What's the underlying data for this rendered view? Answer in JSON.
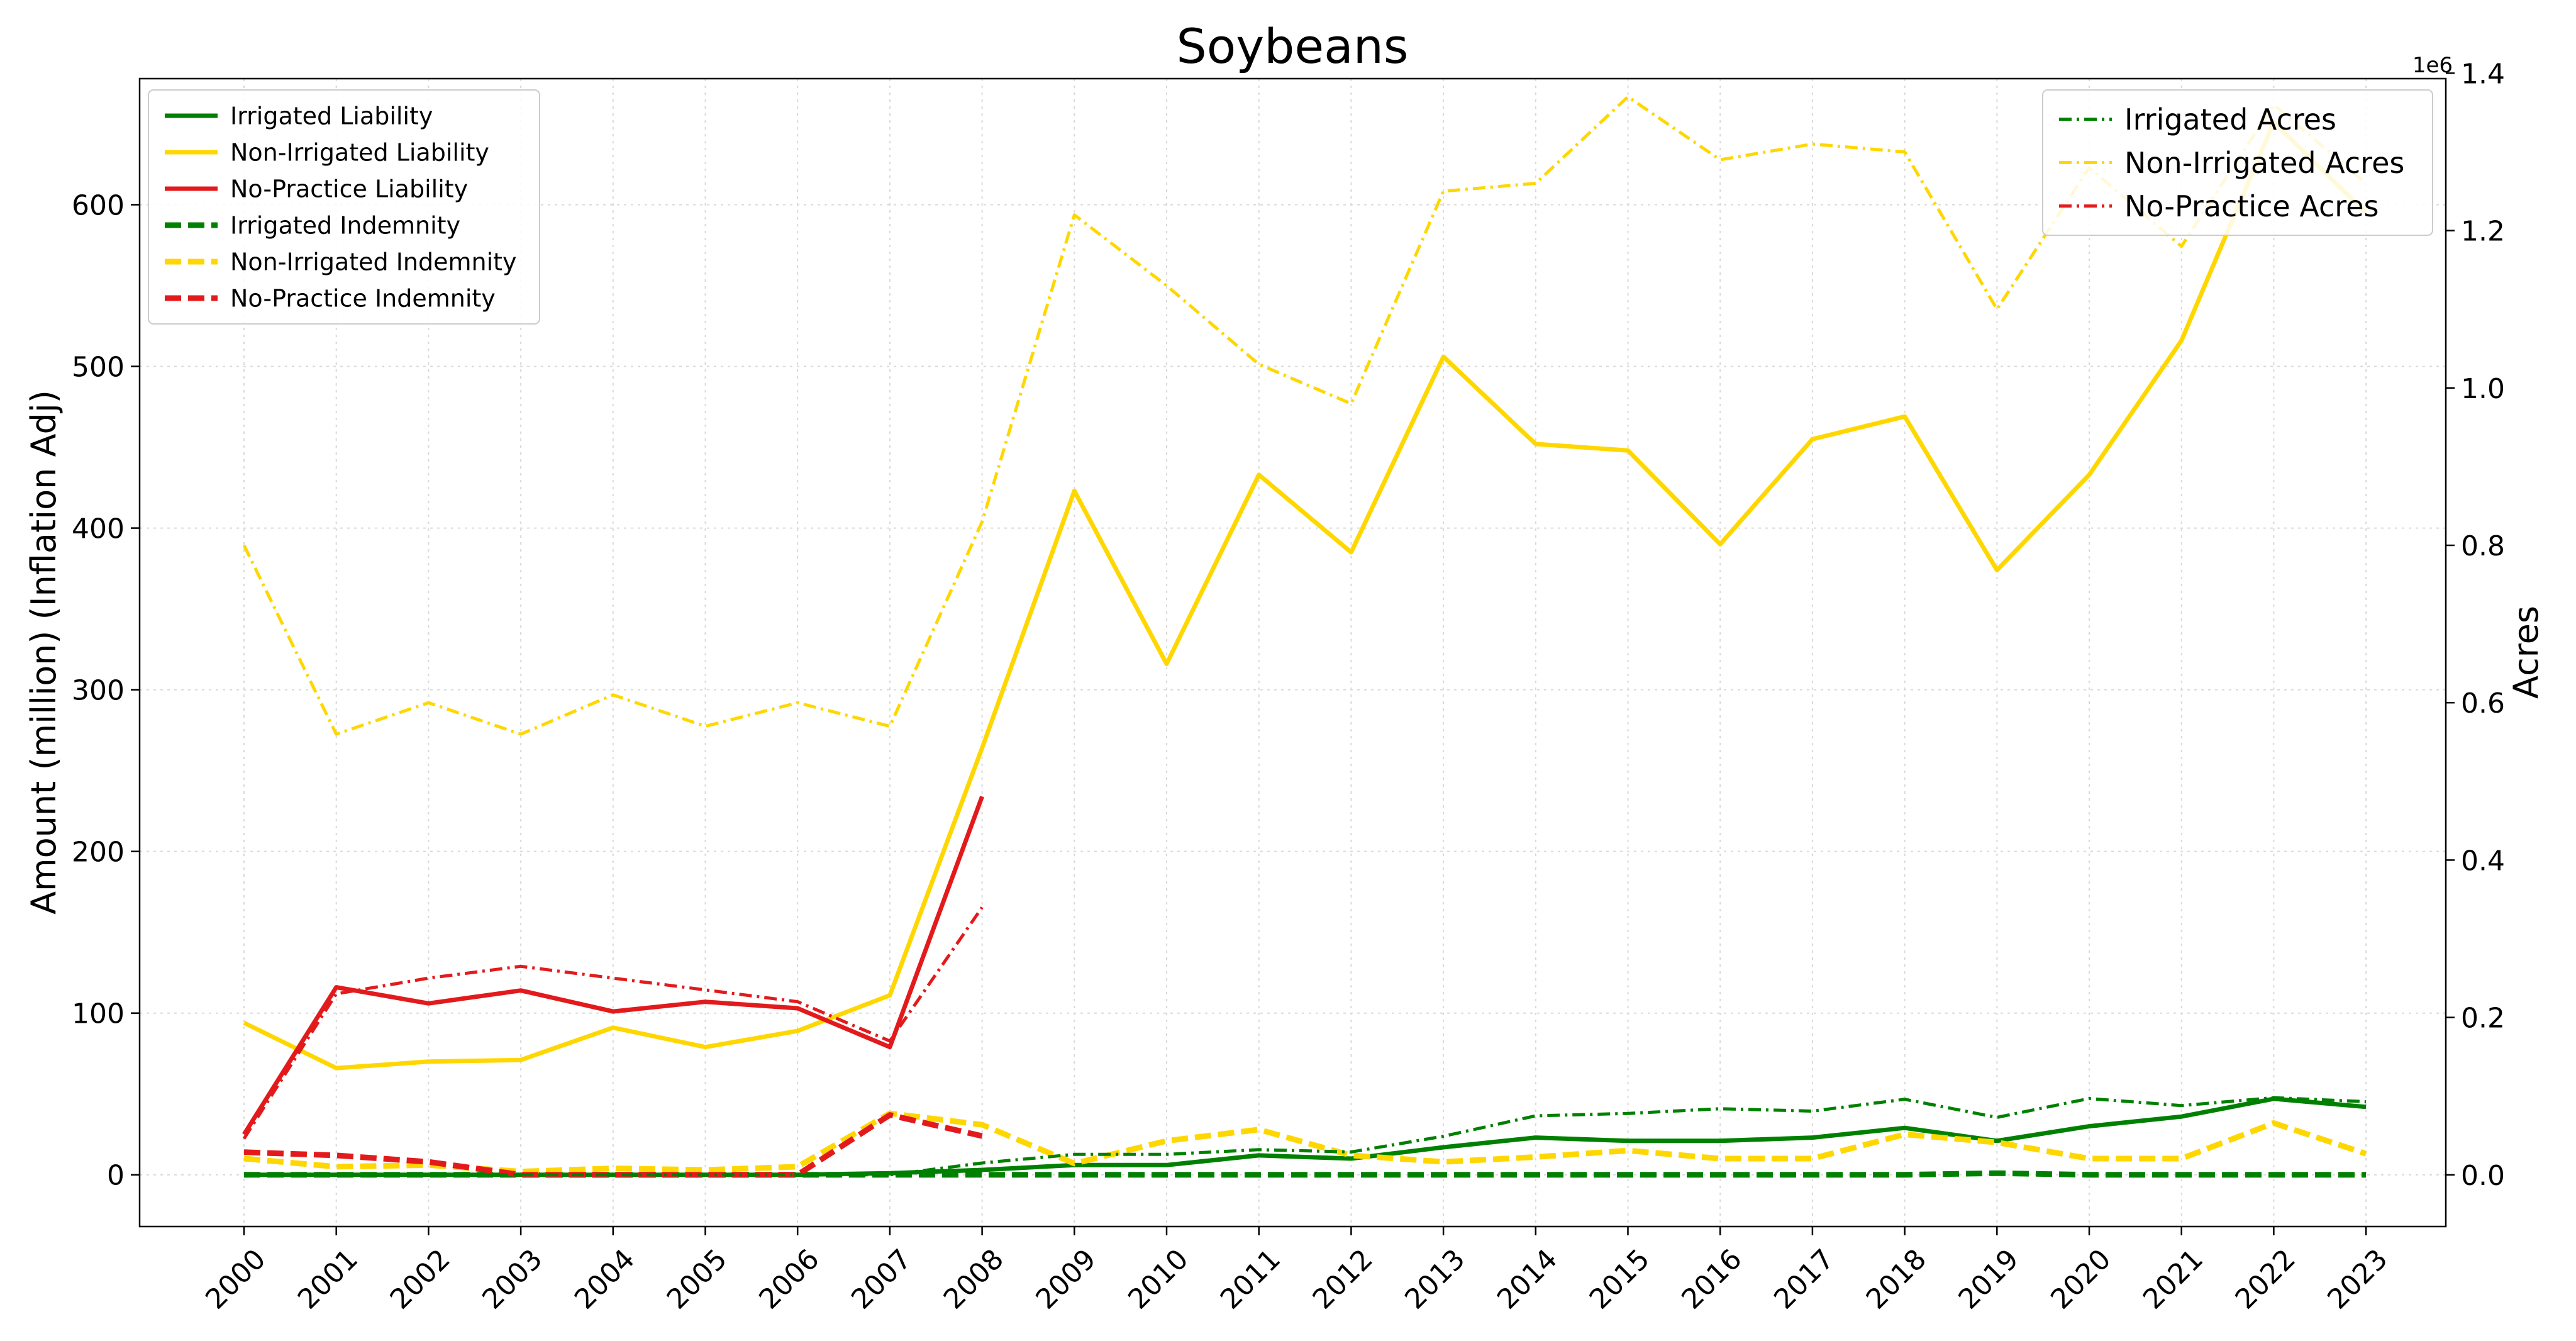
{
  "chart_data": {
    "type": "line",
    "title": "Soybeans",
    "ylabel": "Amount (million) (Inflation Adj)",
    "y2label": "Acres",
    "y2_multiplier_label": "1e6",
    "x": [
      "2000",
      "2001",
      "2002",
      "2003",
      "2004",
      "2005",
      "2006",
      "2007",
      "2008",
      "2009",
      "2010",
      "2011",
      "2012",
      "2013",
      "2014",
      "2015",
      "2016",
      "2017",
      "2018",
      "2019",
      "2020",
      "2021",
      "2022",
      "2023"
    ],
    "ylim": [
      -32,
      678
    ],
    "y2lim": [
      -0.0657,
      1.3931
    ],
    "yticks": [
      0,
      100,
      200,
      300,
      400,
      500,
      600
    ],
    "y2ticks": [
      0.0,
      0.2,
      0.4,
      0.6,
      0.8,
      1.0,
      1.2,
      1.4
    ],
    "y2ticklabels": [
      "0.0",
      "0.2",
      "0.4",
      "0.6",
      "0.8",
      "1.0",
      "1.2",
      "1.4"
    ],
    "grid": true,
    "legend_left_placement": "upper-left",
    "legend_right_placement": "upper-right",
    "series": [
      {
        "name": "Irrigated Liability",
        "axis": "left",
        "color": "#008000",
        "style": "solid",
        "values": [
          0,
          0,
          0,
          0,
          0,
          0,
          0,
          1,
          3,
          6,
          6,
          12,
          10,
          17,
          23,
          21,
          21,
          23,
          29,
          21,
          30,
          36,
          47,
          42
        ]
      },
      {
        "name": "Non-Irrigated Liability",
        "axis": "left",
        "color": "#ffd700",
        "style": "solid",
        "values": [
          94,
          66,
          70,
          71,
          91,
          79,
          89,
          111,
          264,
          423,
          316,
          433,
          385,
          506,
          452,
          448,
          390,
          455,
          469,
          374,
          433,
          516,
          651,
          595
        ]
      },
      {
        "name": "No-Practice Liability",
        "axis": "left",
        "color": "#e31a1c",
        "style": "solid",
        "values": [
          25,
          116,
          106,
          114,
          101,
          107,
          103,
          79,
          234,
          null,
          null,
          null,
          null,
          null,
          null,
          null,
          null,
          null,
          null,
          null,
          null,
          null,
          null,
          null
        ]
      },
      {
        "name": "Irrigated Indemnity",
        "axis": "left",
        "color": "#008000",
        "style": "dashed",
        "values": [
          0,
          0,
          0,
          0,
          0,
          0,
          0,
          0,
          0,
          0,
          0,
          0,
          0,
          0,
          0,
          0,
          0,
          0,
          0,
          1,
          0,
          0,
          0,
          0
        ]
      },
      {
        "name": "Non-Irrigated Indemnity",
        "axis": "left",
        "color": "#ffd700",
        "style": "dashed",
        "values": [
          10,
          5,
          6,
          2,
          4,
          3,
          5,
          38,
          31,
          7,
          21,
          28,
          12,
          8,
          11,
          15,
          10,
          10,
          25,
          20,
          10,
          10,
          32,
          13
        ]
      },
      {
        "name": "No-Practice Indemnity",
        "axis": "left",
        "color": "#e31a1c",
        "style": "dashed",
        "values": [
          14,
          12,
          8,
          0,
          0,
          0,
          0,
          37,
          24,
          null,
          null,
          null,
          null,
          null,
          null,
          null,
          null,
          null,
          null,
          null,
          null,
          null,
          null,
          null
        ]
      },
      {
        "name": "Irrigated Acres",
        "axis": "right",
        "color": "#008000",
        "style": "dashdot",
        "values": [
          0.0,
          0.0,
          0.0,
          0.0,
          0.0,
          0.0,
          0.0,
          0.0,
          0.015,
          0.026,
          0.026,
          0.032,
          0.029,
          0.049,
          0.075,
          0.078,
          0.084,
          0.081,
          0.096,
          0.073,
          0.097,
          0.088,
          0.098,
          0.093
        ]
      },
      {
        "name": "Non-Irrigated Acres",
        "axis": "right",
        "color": "#ffd700",
        "style": "dashdot",
        "values": [
          0.8,
          0.56,
          0.6,
          0.56,
          0.61,
          0.57,
          0.6,
          0.57,
          0.83,
          1.22,
          1.13,
          1.03,
          0.98,
          1.25,
          1.26,
          1.37,
          1.29,
          1.31,
          1.3,
          1.1,
          1.28,
          1.18,
          1.36,
          1.26
        ]
      },
      {
        "name": "No-Practice Acres",
        "axis": "right",
        "color": "#e31a1c",
        "style": "dashdot",
        "values": [
          0.046,
          0.23,
          0.25,
          0.265,
          0.25,
          0.235,
          0.22,
          0.17,
          0.34,
          null,
          null,
          null,
          null,
          null,
          null,
          null,
          null,
          null,
          null,
          null,
          null,
          null,
          null,
          null
        ]
      }
    ]
  }
}
